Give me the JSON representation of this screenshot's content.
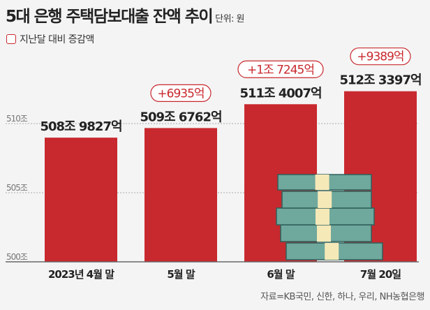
{
  "title": "5대 은행 주택담보대출 잔액 추이",
  "unit": "단위: 원",
  "legend": "지난달 대비 증감액",
  "source": "자료=KB국민, 신한, 하나, 우리, NH농협은행",
  "colors": {
    "bar": "#c8292e",
    "change": "#c8292e",
    "grid": "#aaaaaa"
  },
  "chart_data": {
    "type": "bar",
    "title": "5대 은행 주택담보대출 잔액 추이",
    "categories": [
      "2023년 4월 말",
      "5월 말",
      "6월 말",
      "7월 20일"
    ],
    "values": [
      508.9827,
      509.6762,
      511.4007,
      512.3397
    ],
    "value_labels": [
      "508조 9827억",
      "509조 6762억",
      "511조 4007억",
      "512조 3397억"
    ],
    "change_labels": [
      "",
      "+6935억",
      "+1조 7245억",
      "+9389억"
    ],
    "ylabel": "원 (조)",
    "ylim": [
      500,
      512.34
    ],
    "yticks": [
      500,
      505,
      510
    ],
    "ytick_labels": [
      "500조",
      "505조",
      "510조"
    ],
    "grid": true
  }
}
